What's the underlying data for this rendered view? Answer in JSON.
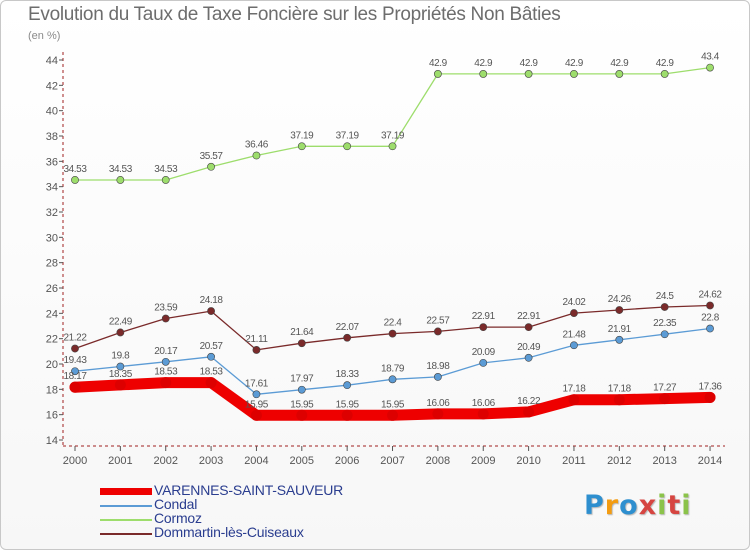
{
  "title": "Evolution du Taux de Taxe Foncière sur les Propriétés Non Bâties",
  "unit": "(en %)",
  "logo": {
    "text": "Proxiti"
  },
  "chart_data": {
    "type": "line",
    "x": [
      2000,
      2001,
      2002,
      2003,
      2004,
      2005,
      2006,
      2007,
      2008,
      2009,
      2010,
      2011,
      2012,
      2013,
      2014
    ],
    "ylim": [
      14,
      44
    ],
    "yticks": [
      14,
      16,
      18,
      20,
      22,
      24,
      26,
      28,
      30,
      32,
      34,
      36,
      38,
      40,
      42,
      44
    ],
    "grid": false,
    "series": [
      {
        "name": "VARENNES-SAINT-SAUVEUR",
        "color": "#ee0000",
        "values": [
          18.17,
          18.35,
          18.53,
          18.53,
          15.95,
          15.95,
          15.95,
          15.95,
          16.06,
          16.06,
          16.22,
          17.18,
          17.18,
          17.27,
          17.36
        ],
        "labels": [
          "18.17",
          "18.35",
          "18.53",
          "18.53",
          "15.95",
          "15.95",
          "15.95",
          "15.95",
          "16.06",
          "16.06",
          "16.22",
          "17.18",
          "17.18",
          "17.27",
          "17.36"
        ]
      },
      {
        "name": "Condal",
        "color": "#5b9bd5",
        "values": [
          19.43,
          19.8,
          20.17,
          20.57,
          17.61,
          17.97,
          18.33,
          18.79,
          18.98,
          20.09,
          20.49,
          21.48,
          21.91,
          22.35,
          22.8
        ],
        "labels": [
          "19.43",
          "19.8",
          "20.17",
          "20.57",
          "17.61",
          "17.97",
          "18.33",
          "18.79",
          "18.98",
          "20.09",
          "20.49",
          "21.48",
          "21.91",
          "22.35",
          "22.8"
        ]
      },
      {
        "name": "Cormoz",
        "color": "#9ddd6c",
        "values": [
          34.53,
          34.53,
          34.53,
          35.57,
          36.46,
          37.19,
          37.19,
          37.19,
          42.9,
          42.9,
          42.9,
          42.9,
          42.9,
          42.9,
          43.4
        ],
        "labels": [
          "34.53",
          "34.53",
          "34.53",
          "35.57",
          "36.46",
          "37.19",
          "37.19",
          "37.19",
          "42.9",
          "42.9",
          "42.9",
          "42.9",
          "42.9",
          "42.9",
          "43.4"
        ]
      },
      {
        "name": "Dommartin-lès-Cuiseaux",
        "color": "#7a2a2a",
        "values": [
          21.22,
          22.49,
          23.59,
          24.18,
          21.11,
          21.64,
          22.07,
          22.4,
          22.57,
          22.91,
          22.91,
          24.02,
          24.26,
          24.5,
          24.62
        ],
        "labels": [
          "21.22",
          "22.49",
          "23.59",
          "24.18",
          "21.11",
          "21.64",
          "22.07",
          "22.4",
          "22.57",
          "22.91",
          "22.91",
          "24.02",
          "24.26",
          "24.5",
          "24.62"
        ]
      }
    ]
  }
}
